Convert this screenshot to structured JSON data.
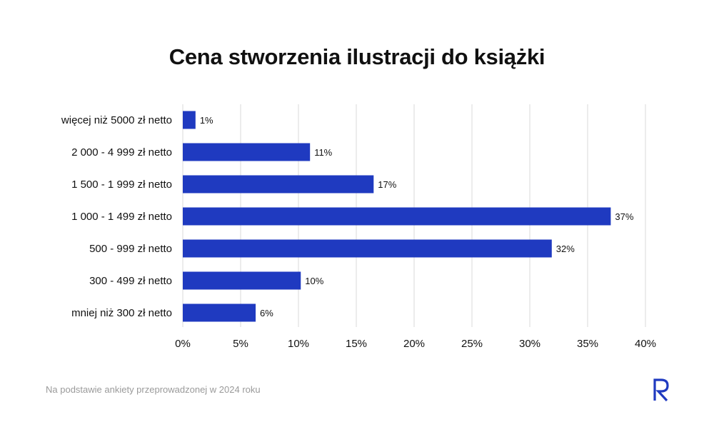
{
  "title": "Cena stworzenia ilustracji do książki",
  "footnote": "Na podstawie ankiety przeprowadzonej w 2024 roku",
  "colors": {
    "bar": "#1f3ac0",
    "grid": "#d9d9d9",
    "text": "#111111",
    "footnote": "#9a9a9a"
  },
  "logo_icon": "r-logo-icon",
  "chart_data": {
    "type": "bar",
    "orientation": "horizontal",
    "categories": [
      "więcej niż 5000 zł netto",
      "2 000 - 4 999 zł netto",
      "1 500 - 1 999 zł netto",
      "1 000 - 1 499 zł netto",
      "500 - 999 zł netto",
      "300 - 499 zł netto",
      "mniej niż 300 zł netto"
    ],
    "values": [
      1.1,
      11,
      16.5,
      37,
      31.9,
      10.2,
      6.3
    ],
    "data_labels": [
      "1%",
      "11%",
      "17%",
      "37%",
      "32%",
      "10%",
      "6%"
    ],
    "xlim": [
      0,
      40
    ],
    "xticks": [
      0,
      5,
      10,
      15,
      20,
      25,
      30,
      35,
      40
    ],
    "xtick_labels": [
      "0%",
      "5%",
      "10%",
      "15%",
      "20%",
      "25%",
      "30%",
      "35%",
      "40%"
    ],
    "grid": true,
    "legend": "none"
  }
}
